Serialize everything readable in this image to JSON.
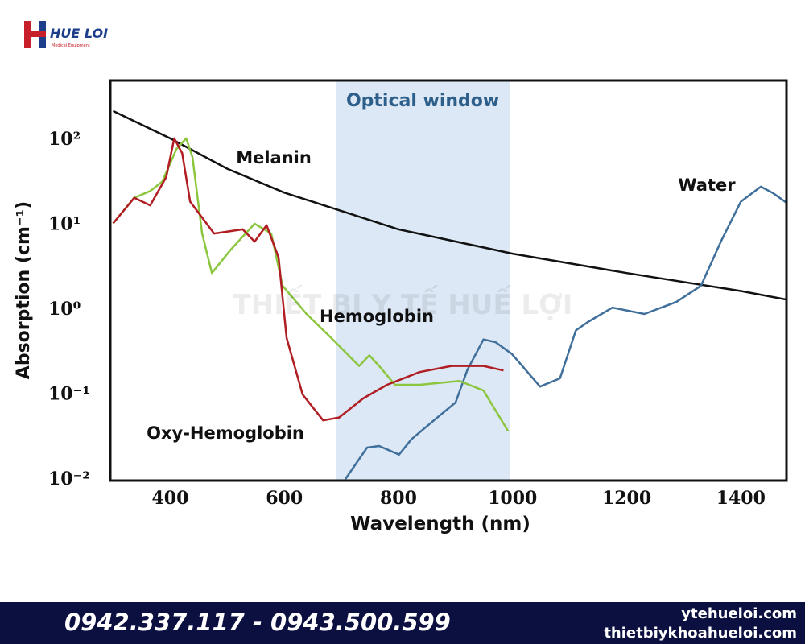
{
  "header": {
    "logo": "HUE LOI",
    "tagline": "Medical Equipment"
  },
  "watermark": "THIẾT BỊ Y TẾ HUẾ LỢI",
  "chart_data": {
    "type": "line",
    "x_label": "Wavelength (nm)",
    "y_label": "Absorption (cm⁻¹)",
    "xlim": [
      295,
      1480
    ],
    "ylim": [
      0.0094,
      480
    ],
    "yscale": "log",
    "grid": false,
    "xticks": [
      400,
      600,
      800,
      1000,
      1200,
      1400
    ],
    "yticks": [
      {
        "value": 0.01,
        "label": "10⁻²"
      },
      {
        "value": 0.1,
        "label": "10⁻¹"
      },
      {
        "value": 1,
        "label": "10⁰"
      },
      {
        "value": 10,
        "label": "10¹"
      },
      {
        "value": 100,
        "label": "10²"
      }
    ],
    "shaded_region": {
      "label": "Optical window",
      "x": [
        690,
        995
      ],
      "color": "#dce8f5"
    },
    "series": [
      {
        "name": "Melanin",
        "color": "#111111",
        "x": [
          300,
          400,
          500,
          600,
          700,
          800,
          1000,
          1200,
          1400,
          1480
        ],
        "values": [
          210,
          100,
          44,
          23,
          14,
          8.5,
          4.4,
          2.6,
          1.6,
          1.27
        ]
      },
      {
        "name": "Water",
        "color": "#3f6f9a",
        "x": [
          707,
          745,
          766,
          801,
          823,
          865,
          900,
          921,
          949,
          970,
          999,
          1048,
          1083,
          1111,
          1132,
          1175,
          1231,
          1287,
          1330,
          1365,
          1400,
          1435,
          1456,
          1480
        ],
        "values": [
          0.0098,
          0.023,
          0.024,
          0.019,
          0.029,
          0.05,
          0.078,
          0.19,
          0.43,
          0.4,
          0.29,
          0.12,
          0.15,
          0.55,
          0.69,
          1.02,
          0.86,
          1.19,
          1.84,
          6.1,
          18,
          27,
          22.8,
          17.5
        ]
      },
      {
        "name": "Hemoglobin",
        "color": "#8cc63f",
        "x": [
          300,
          337,
          365,
          386,
          411,
          428,
          439,
          456,
          473,
          506,
          548,
          577,
          597,
          639,
          682,
          731,
          749,
          766,
          794,
          837,
          907,
          949,
          992
        ],
        "values": [
          10,
          20,
          24,
          31,
          75,
          100,
          60,
          7.6,
          2.6,
          4.9,
          9.9,
          7.6,
          1.84,
          0.86,
          0.45,
          0.21,
          0.28,
          0.21,
          0.126,
          0.126,
          0.14,
          0.108,
          0.036
        ]
      },
      {
        "name": "Oxy-Hemoglobin",
        "color": "#b01e23",
        "x": [
          300,
          337,
          365,
          393,
          407,
          421,
          435,
          477,
          527,
          548,
          569,
          590,
          604,
          632,
          668,
          696,
          738,
          780,
          837,
          893,
          949,
          984
        ],
        "values": [
          10,
          20,
          16.3,
          35,
          100,
          67,
          18,
          7.6,
          8.5,
          6.1,
          9.5,
          3.96,
          0.45,
          0.097,
          0.048,
          0.052,
          0.087,
          0.126,
          0.178,
          0.21,
          0.21,
          0.186
        ]
      }
    ]
  },
  "footer": {
    "phones": "0942.337.117 - 0943.500.599",
    "site1": "ytehueloi.com",
    "site2": "thietbiykhoahueloi.com"
  }
}
